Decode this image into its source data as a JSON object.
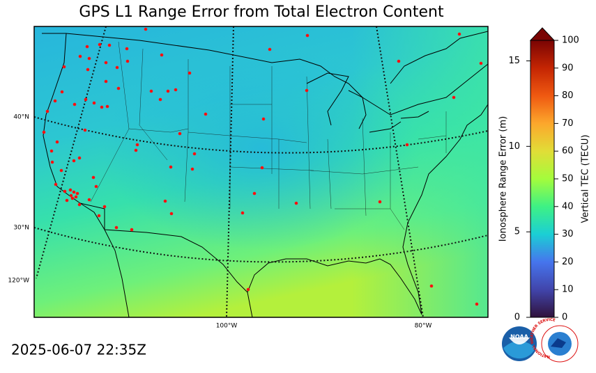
{
  "title": "GPS L1 Range Error from Total Electron Content",
  "timestamp": "2025-06-07 22:35Z",
  "map": {
    "lat_labels": [
      "40°N",
      "30°N"
    ],
    "lon_labels": [
      "120°W",
      "100°W",
      "80°W"
    ]
  },
  "colorbar": {
    "range_label": "Ionosphere Range Error (m)",
    "tec_label": "Vertical TEC (TECU)",
    "range_lim": [
      0,
      16.2
    ],
    "range_ticks": [
      0,
      5,
      10,
      15
    ],
    "tec_lim": [
      0,
      100
    ],
    "tec_ticks": [
      0,
      10,
      20,
      30,
      40,
      50,
      60,
      70,
      80,
      90,
      100
    ]
  },
  "logos": {
    "noaa": "NOAA",
    "nws": "NATIONAL WEATHER SERVICE"
  }
}
